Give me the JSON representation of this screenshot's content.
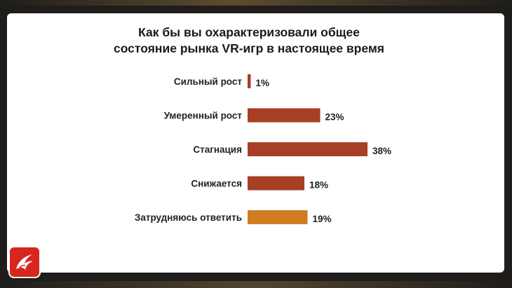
{
  "chart_data": {
    "type": "bar",
    "orientation": "horizontal",
    "title": "Как бы вы охарактеризовали общее\nсостояние рынка VR-игр в настоящее время",
    "categories": [
      "Сильный рост",
      "Умеренный рост",
      "Стагнация",
      "Снижается",
      "Затрудняюсь ответить"
    ],
    "values": [
      1,
      23,
      38,
      18,
      19
    ],
    "value_labels": [
      "1%",
      "23%",
      "38%",
      "18%",
      "19%"
    ],
    "unit": "%",
    "bar_colors": [
      "#a63f26",
      "#a63f26",
      "#a63f26",
      "#a63f26",
      "#d27c22"
    ],
    "xlim": [
      0,
      38
    ],
    "grid": false,
    "legend": "none"
  },
  "colors": {
    "background": "#1f1d1b",
    "card": "#ffffff",
    "text": "#1a1a1a",
    "bar_primary": "#a63f26",
    "bar_secondary": "#d27c22",
    "logo": "#d7261e"
  },
  "logo": {
    "icon": "stylized-bird-logo-icon"
  }
}
